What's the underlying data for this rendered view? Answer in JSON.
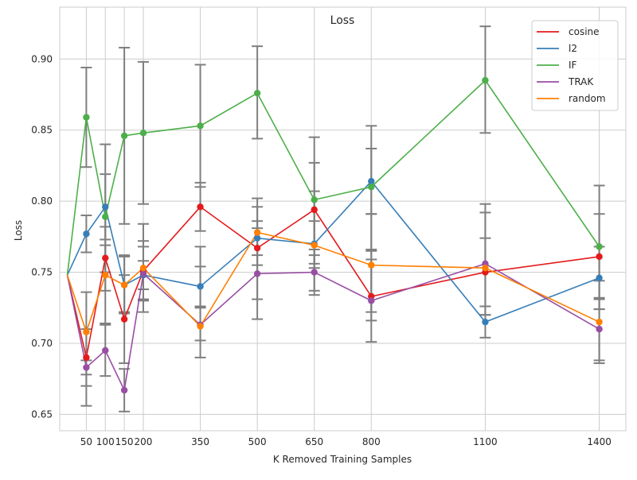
{
  "chart_data": {
    "type": "line",
    "title": "Loss",
    "xlabel": "K Removed Training Samples",
    "ylabel": "Loss",
    "xlim": [
      -20,
      1470
    ],
    "ylim": [
      0.6385,
      0.9365
    ],
    "x_ticks": [
      50,
      100,
      150,
      200,
      350,
      500,
      650,
      800,
      1100,
      1400
    ],
    "x_tick_labels": [
      "50",
      "100",
      "150",
      "200",
      "350",
      "500",
      "650",
      "800",
      "1100",
      "1400"
    ],
    "y_ticks": [
      0.65,
      0.7,
      0.75,
      0.8,
      0.85,
      0.9
    ],
    "y_tick_labels": [
      "0.65",
      "0.70",
      "0.75",
      "0.80",
      "0.85",
      "0.90"
    ],
    "grid": true,
    "legend_position": "top-right",
    "x": [
      0,
      50,
      100,
      150,
      200,
      350,
      500,
      650,
      800,
      1100,
      1400
    ],
    "series": [
      {
        "name": "cosine",
        "color": "#e41a1c",
        "values": [
          0.748,
          0.69,
          0.76,
          0.717,
          0.751,
          0.796,
          0.767,
          0.794,
          0.733,
          0.75,
          0.761
        ],
        "err_low": [
          null,
          0.67,
          0.75,
          0.686,
          0.731,
          0.779,
          0.731,
          0.762,
          0.716,
          0.726,
          0.731
        ],
        "err_high": [
          null,
          0.71,
          0.769,
          0.748,
          0.772,
          0.813,
          0.802,
          0.827,
          0.765,
          0.774,
          0.791
        ]
      },
      {
        "name": "l2",
        "color": "#377eb8",
        "values": [
          0.748,
          0.777,
          0.796,
          0.741,
          0.748,
          0.74,
          0.774,
          0.77,
          0.814,
          0.715,
          0.746
        ],
        "err_low": [
          null,
          0.764,
          0.773,
          0.721,
          0.738,
          0.726,
          0.762,
          0.753,
          0.791,
          0.704,
          0.724
        ],
        "err_high": [
          null,
          0.79,
          0.819,
          0.762,
          0.758,
          0.754,
          0.786,
          0.786,
          0.837,
          0.726,
          0.768
        ]
      },
      {
        "name": "IF",
        "color": "#4daf4a",
        "values": [
          0.748,
          0.859,
          0.789,
          0.846,
          0.848,
          0.853,
          0.876,
          0.801,
          0.81,
          0.885,
          0.768
        ],
        "err_low": [
          null,
          0.824,
          0.737,
          0.784,
          0.798,
          0.81,
          0.844,
          0.756,
          0.766,
          0.848,
          0.724
        ],
        "err_high": [
          null,
          0.894,
          0.84,
          0.908,
          0.898,
          0.896,
          0.909,
          0.845,
          0.853,
          0.923,
          0.811
        ]
      },
      {
        "name": "TRAK",
        "color": "#984ea3",
        "values": [
          0.748,
          0.683,
          0.695,
          0.667,
          0.749,
          0.713,
          0.749,
          0.75,
          0.73,
          0.756,
          0.71
        ],
        "err_low": [
          null,
          0.678,
          0.677,
          0.652,
          0.73,
          0.702,
          0.717,
          0.734,
          0.701,
          0.72,
          0.688
        ],
        "err_high": [
          null,
          0.688,
          0.713,
          0.682,
          0.768,
          0.725,
          0.781,
          0.766,
          0.759,
          0.792,
          0.732
        ]
      },
      {
        "name": "random",
        "color": "#ff7f00",
        "values": [
          0.748,
          0.708,
          0.748,
          0.741,
          0.753,
          0.712,
          0.778,
          0.769,
          0.755,
          0.753,
          0.715
        ],
        "err_low": [
          null,
          0.656,
          0.714,
          0.722,
          0.722,
          0.69,
          0.755,
          0.737,
          0.722,
          0.72,
          0.686
        ],
        "err_high": [
          null,
          0.736,
          0.782,
          0.761,
          0.784,
          0.768,
          0.796,
          0.807,
          0.791,
          0.798,
          0.744
        ]
      }
    ]
  }
}
